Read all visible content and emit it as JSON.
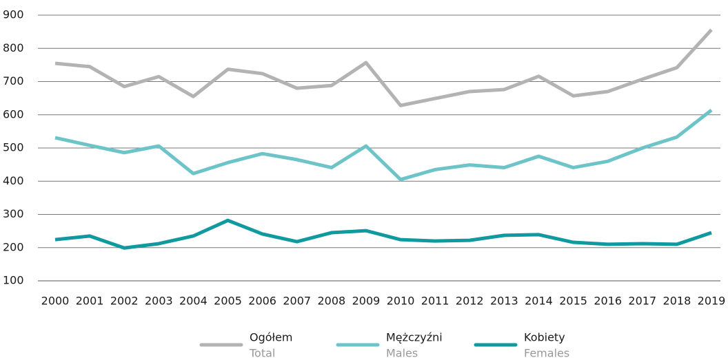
{
  "chart_data": {
    "type": "line",
    "categories": [
      "2000",
      "2001",
      "2002",
      "2003",
      "2004",
      "2005",
      "2006",
      "2007",
      "2008",
      "2009",
      "2010",
      "2011",
      "2012",
      "2013",
      "2014",
      "2015",
      "2016",
      "2017",
      "2018",
      "2019"
    ],
    "series": [
      {
        "name": "Ogółem",
        "name_en": "Total",
        "color": "#b3b3b3",
        "values": [
          755,
          745,
          685,
          715,
          655,
          737,
          724,
          680,
          688,
          757,
          628,
          649,
          670,
          676,
          716,
          657,
          670,
          707,
          742,
          856
        ]
      },
      {
        "name": "Mężczyźni",
        "name_en": "Males",
        "color": "#6cc4c8",
        "values": [
          531,
          508,
          486,
          506,
          423,
          456,
          483,
          465,
          441,
          506,
          405,
          435,
          449,
          441,
          475,
          441,
          460,
          500,
          533,
          614
        ]
      },
      {
        "name": "Kobiety",
        "name_en": "Females",
        "color": "#109aa0",
        "values": [
          224,
          235,
          199,
          212,
          235,
          282,
          241,
          218,
          245,
          251,
          224,
          220,
          222,
          237,
          239,
          216,
          210,
          212,
          210,
          245
        ]
      }
    ],
    "ylim": [
      100,
      900
    ],
    "yticks": [
      100,
      200,
      300,
      400,
      500,
      600,
      700,
      800,
      900
    ],
    "grid": true
  }
}
